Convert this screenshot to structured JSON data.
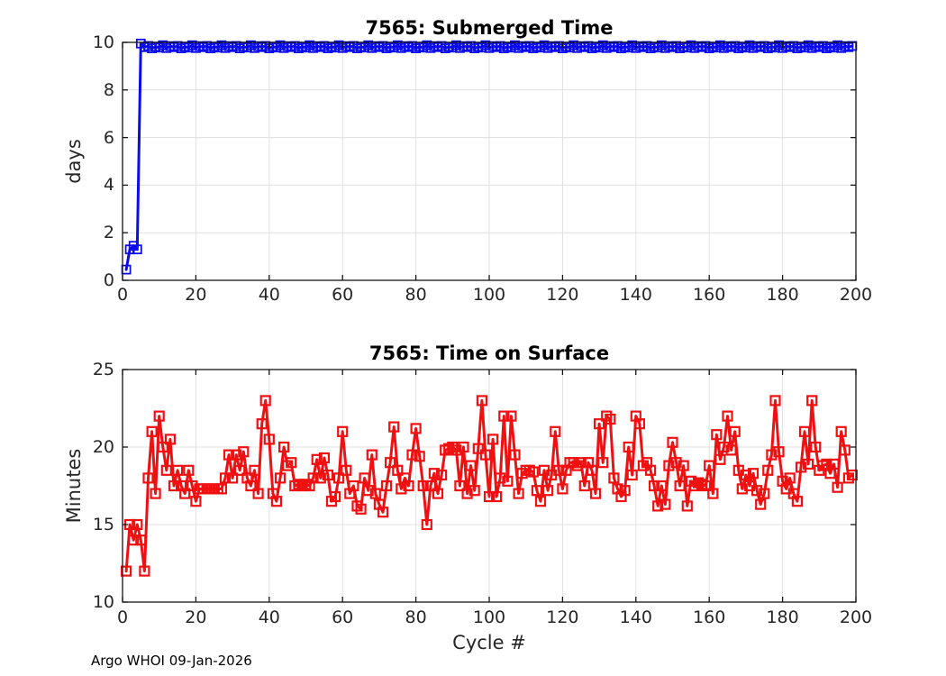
{
  "footer": "Argo WHOI 09-Jan-2026",
  "chart_data": [
    {
      "type": "line",
      "title": "7565: Submerged Time",
      "xlabel": "",
      "ylabel": "days",
      "xlim": [
        0,
        200
      ],
      "ylim": [
        0,
        10
      ],
      "xticks": [
        0,
        20,
        40,
        60,
        80,
        100,
        120,
        140,
        160,
        180,
        200
      ],
      "yticks": [
        0,
        2,
        4,
        6,
        8,
        10
      ],
      "grid": true,
      "legend": null,
      "color": "#0b0bee",
      "marker": "open-square",
      "x": [
        1,
        2,
        3,
        4,
        5,
        6,
        7,
        8,
        9,
        10,
        11,
        12,
        13,
        14,
        15,
        16,
        17,
        18,
        19,
        20,
        21,
        22,
        23,
        24,
        25,
        26,
        27,
        28,
        29,
        30,
        31,
        32,
        33,
        34,
        35,
        36,
        37,
        38,
        39,
        40,
        41,
        42,
        43,
        44,
        45,
        46,
        47,
        48,
        49,
        50,
        51,
        52,
        53,
        54,
        55,
        56,
        57,
        58,
        59,
        60,
        61,
        62,
        63,
        64,
        65,
        66,
        67,
        68,
        69,
        70,
        71,
        72,
        73,
        74,
        75,
        76,
        77,
        78,
        79,
        80,
        81,
        82,
        83,
        84,
        85,
        86,
        87,
        88,
        89,
        90,
        91,
        92,
        93,
        94,
        95,
        96,
        97,
        98,
        99,
        100,
        101,
        102,
        103,
        104,
        105,
        106,
        107,
        108,
        109,
        110,
        111,
        112,
        113,
        114,
        115,
        116,
        117,
        118,
        119,
        120,
        121,
        122,
        123,
        124,
        125,
        126,
        127,
        128,
        129,
        130,
        131,
        132,
        133,
        134,
        135,
        136,
        137,
        138,
        139,
        140,
        141,
        142,
        143,
        144,
        145,
        146,
        147,
        148,
        149,
        150,
        151,
        152,
        153,
        154,
        155,
        156,
        157,
        158,
        159,
        160,
        161,
        162,
        163,
        164,
        165,
        166,
        167,
        168,
        169,
        170,
        171,
        172,
        173,
        174,
        175,
        176,
        177,
        178,
        179,
        180,
        181,
        182,
        183,
        184,
        185,
        186,
        187,
        188,
        189,
        190,
        191,
        192,
        193,
        194,
        195,
        196,
        197,
        198,
        199
      ],
      "y": [
        0.45,
        1.3,
        1.45,
        1.3,
        9.95,
        9.8,
        9.85,
        9.75,
        9.82,
        9.78,
        9.88,
        9.76,
        9.84,
        9.8,
        9.85,
        9.75,
        9.82,
        9.78,
        9.88,
        9.76,
        9.84,
        9.8,
        9.85,
        9.75,
        9.82,
        9.78,
        9.88,
        9.76,
        9.84,
        9.8,
        9.85,
        9.75,
        9.82,
        9.78,
        9.88,
        9.76,
        9.84,
        9.8,
        9.85,
        9.75,
        9.82,
        9.78,
        9.88,
        9.76,
        9.84,
        9.8,
        9.85,
        9.75,
        9.82,
        9.78,
        9.88,
        9.76,
        9.84,
        9.8,
        9.85,
        9.75,
        9.82,
        9.78,
        9.88,
        9.76,
        9.84,
        9.8,
        9.85,
        9.75,
        9.82,
        9.78,
        9.88,
        9.76,
        9.84,
        9.8,
        9.85,
        9.75,
        9.82,
        9.78,
        9.88,
        9.76,
        9.84,
        9.8,
        9.85,
        9.75,
        9.82,
        9.78,
        9.88,
        9.76,
        9.84,
        9.8,
        9.85,
        9.75,
        9.82,
        9.78,
        9.88,
        9.76,
        9.84,
        9.8,
        9.85,
        9.75,
        9.82,
        9.78,
        9.88,
        9.76,
        9.84,
        9.8,
        9.85,
        9.75,
        9.82,
        9.78,
        9.88,
        9.76,
        9.84,
        9.8,
        9.85,
        9.75,
        9.82,
        9.78,
        9.88,
        9.76,
        9.84,
        9.8,
        9.85,
        9.75,
        9.82,
        9.78,
        9.88,
        9.76,
        9.84,
        9.8,
        9.85,
        9.75,
        9.82,
        9.78,
        9.88,
        9.76,
        9.84,
        9.8,
        9.85,
        9.75,
        9.82,
        9.78,
        9.88,
        9.76,
        9.84,
        9.8,
        9.85,
        9.75,
        9.82,
        9.78,
        9.88,
        9.76,
        9.84,
        9.8,
        9.85,
        9.75,
        9.82,
        9.78,
        9.88,
        9.76,
        9.84,
        9.8,
        9.85,
        9.75,
        9.82,
        9.78,
        9.88,
        9.76,
        9.84,
        9.8,
        9.85,
        9.75,
        9.82,
        9.78,
        9.88,
        9.76,
        9.84,
        9.8,
        9.85,
        9.75,
        9.82,
        9.78,
        9.88,
        9.76,
        9.84,
        9.8,
        9.85,
        9.75,
        9.82,
        9.78,
        9.88,
        9.76,
        9.84,
        9.8,
        9.85,
        9.75,
        9.82,
        9.78,
        9.88,
        9.76,
        9.84,
        9.8,
        9.85
      ]
    },
    {
      "type": "line",
      "title": "7565: Time on Surface",
      "xlabel": "Cycle #",
      "ylabel": "Minutes",
      "xlim": [
        0,
        200
      ],
      "ylim": [
        10,
        25
      ],
      "xticks": [
        0,
        20,
        40,
        60,
        80,
        100,
        120,
        140,
        160,
        180,
        200
      ],
      "yticks": [
        10,
        15,
        20,
        25
      ],
      "grid": true,
      "legend": null,
      "color": "#ef1111",
      "marker": "open-square",
      "x": [
        1,
        2,
        3,
        4,
        5,
        6,
        7,
        8,
        9,
        10,
        11,
        12,
        13,
        14,
        15,
        16,
        17,
        18,
        19,
        20,
        21,
        22,
        23,
        24,
        25,
        26,
        27,
        28,
        29,
        30,
        31,
        32,
        33,
        34,
        35,
        36,
        37,
        38,
        39,
        40,
        41,
        42,
        43,
        44,
        45,
        46,
        47,
        48,
        49,
        50,
        51,
        52,
        53,
        54,
        55,
        56,
        57,
        58,
        59,
        60,
        61,
        62,
        63,
        64,
        65,
        66,
        67,
        68,
        69,
        70,
        71,
        72,
        73,
        74,
        75,
        76,
        77,
        78,
        79,
        80,
        81,
        82,
        83,
        84,
        85,
        86,
        87,
        88,
        89,
        90,
        91,
        92,
        93,
        94,
        95,
        96,
        97,
        98,
        99,
        100,
        101,
        102,
        103,
        104,
        105,
        106,
        107,
        108,
        109,
        110,
        111,
        112,
        113,
        114,
        115,
        116,
        117,
        118,
        119,
        120,
        121,
        122,
        123,
        124,
        125,
        126,
        127,
        128,
        129,
        130,
        131,
        132,
        133,
        134,
        135,
        136,
        137,
        138,
        139,
        140,
        141,
        142,
        143,
        144,
        145,
        146,
        147,
        148,
        149,
        150,
        151,
        152,
        153,
        154,
        155,
        156,
        157,
        158,
        159,
        160,
        161,
        162,
        163,
        164,
        165,
        166,
        167,
        168,
        169,
        170,
        171,
        172,
        173,
        174,
        175,
        176,
        177,
        178,
        179,
        180,
        181,
        182,
        183,
        184,
        185,
        186,
        187,
        188,
        189,
        190,
        191,
        192,
        193,
        194,
        195,
        196,
        197,
        198,
        199
      ],
      "y": [
        12,
        15,
        14,
        15,
        14,
        12,
        18,
        21,
        17,
        22,
        20,
        18.5,
        20.5,
        17.5,
        18.5,
        17.5,
        17,
        18.5,
        17.5,
        16.5,
        17.3,
        17.3,
        17.3,
        17.3,
        17.3,
        17.3,
        17.3,
        18,
        19.5,
        18,
        19.5,
        18.5,
        19.7,
        18,
        17.5,
        18.5,
        17,
        21.5,
        23,
        20.5,
        17,
        16.5,
        18,
        20,
        18.8,
        19,
        17.5,
        17.6,
        17.5,
        17.6,
        17.5,
        18,
        19.2,
        18,
        19.3,
        18.2,
        16.5,
        16.8,
        18,
        21,
        18.5,
        17,
        17.5,
        16.2,
        16,
        18,
        17.2,
        19.5,
        17,
        16.3,
        15.8,
        17.5,
        19,
        21.3,
        18.5,
        17.3,
        18,
        17.5,
        19.5,
        21.2,
        19.4,
        17.5,
        15,
        17.5,
        18.3,
        17,
        18.2,
        19.8,
        19.9,
        20,
        19.8,
        17.5,
        20,
        17,
        18.8,
        17.2,
        19.9,
        23,
        19.5,
        16.8,
        20.5,
        16.8,
        18,
        22,
        17.8,
        22,
        19.5,
        17,
        18.3,
        18.5,
        18.5,
        18.4,
        17.2,
        16.5,
        18.5,
        17.2,
        18.2,
        21,
        18.5,
        17.3,
        18.5,
        19,
        19,
        18.8,
        19,
        17.5,
        19,
        18.5,
        17,
        21.5,
        19,
        22,
        21.8,
        18,
        17.3,
        16.8,
        17.2,
        20,
        18.2,
        22,
        21.5,
        18.8,
        19,
        18.5,
        17.5,
        16.2,
        17.5,
        16.3,
        18.8,
        20.3,
        19,
        17.5,
        18.8,
        16.2,
        17.8,
        17.5,
        17.7,
        17.6,
        17.5,
        18.8,
        17,
        20.8,
        19.2,
        20,
        22,
        19.8,
        21,
        18.5,
        17.3,
        18.2,
        17.5,
        18.3,
        17.2,
        16.3,
        17,
        18.5,
        19.5,
        23,
        19.7,
        17.8,
        17.3,
        18,
        17,
        16.5,
        18.7,
        21,
        18.9,
        23,
        20,
        18.5,
        18.8,
        18.9,
        18.3,
        18.9,
        17.4,
        21,
        19.8,
        18,
        18.2
      ]
    }
  ]
}
